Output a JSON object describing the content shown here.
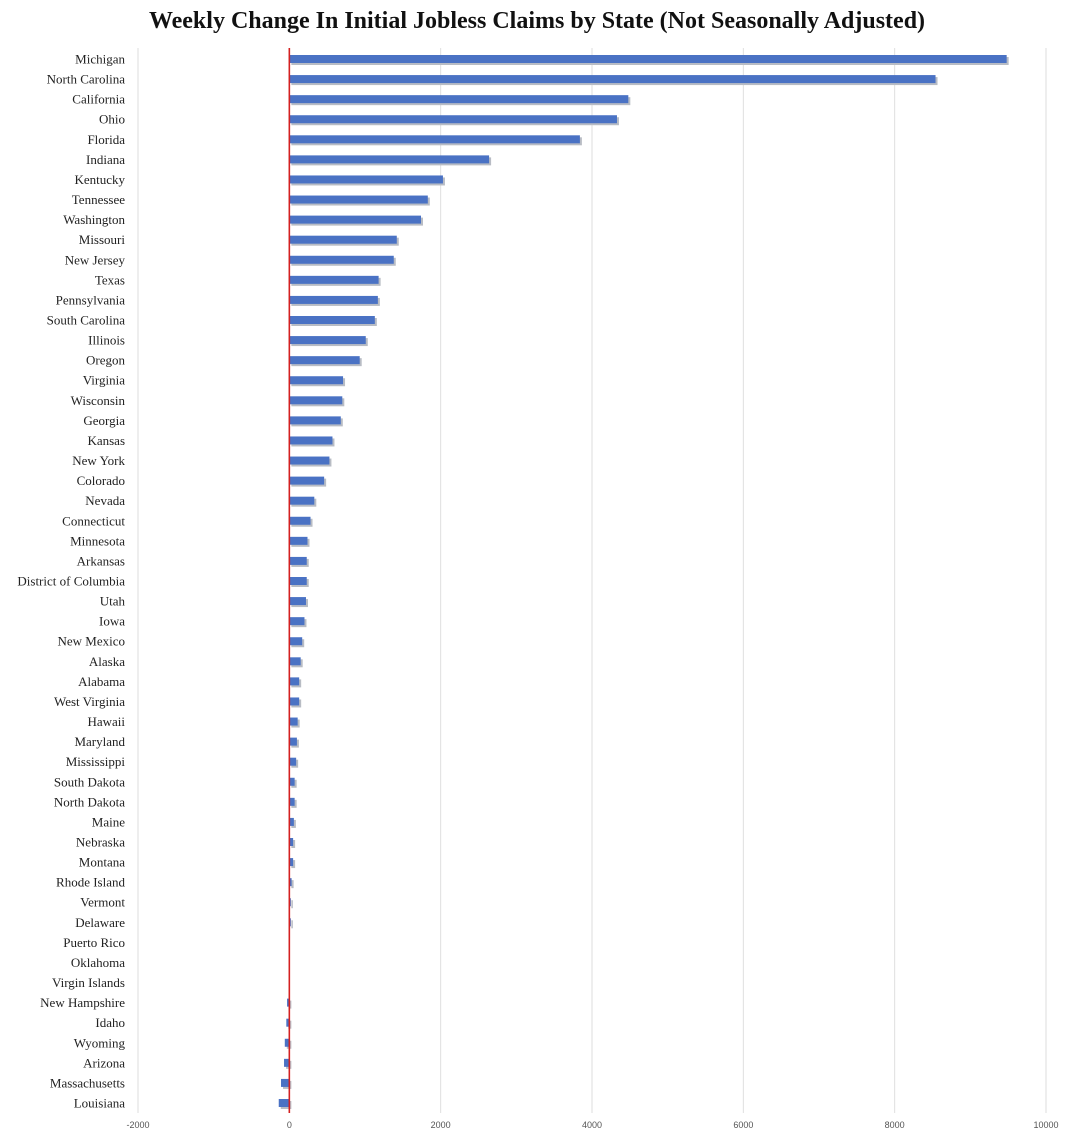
{
  "chart_data": {
    "type": "bar",
    "orientation": "horizontal",
    "title": "Weekly Change In Initial Jobless Claims by State (Not Seasonally Adjusted)",
    "xlabel": "",
    "ylabel": "",
    "xlim": [
      -2000,
      10000
    ],
    "x_ticks": [
      -2000,
      0,
      2000,
      4000,
      6000,
      8000,
      10000
    ],
    "grid": "vertical",
    "legend": "none",
    "categories": [
      "Michigan",
      "North Carolina",
      "California",
      "Ohio",
      "Florida",
      "Indiana",
      "Kentucky",
      "Tennessee",
      "Washington",
      "Missouri",
      "New Jersey",
      "Texas",
      "Pennsylvania",
      "South Carolina",
      "Illinois",
      "Oregon",
      "Virginia",
      "Wisconsin",
      "Georgia",
      "Kansas",
      "New York",
      "Colorado",
      "Nevada",
      "Connecticut",
      "Minnesota",
      "Arkansas",
      "District of Columbia",
      "Utah",
      "Iowa",
      "New Mexico",
      "Alaska",
      "Alabama",
      "West Virginia",
      "Hawaii",
      "Maryland",
      "Mississippi",
      "South Dakota",
      "North Dakota",
      "Maine",
      "Nebraska",
      "Montana",
      "Rhode Island",
      "Vermont",
      "Delaware",
      "Puerto Rico",
      "Oklahoma",
      "Virgin Islands",
      "New Hampshire",
      "Idaho",
      "Wyoming",
      "Arizona",
      "Massachusetts",
      "Louisiana"
    ],
    "values": [
      9480,
      8540,
      4480,
      4330,
      3840,
      2640,
      2030,
      1830,
      1740,
      1420,
      1380,
      1180,
      1170,
      1130,
      1010,
      930,
      710,
      700,
      680,
      570,
      530,
      460,
      330,
      280,
      240,
      230,
      230,
      220,
      200,
      170,
      150,
      130,
      130,
      110,
      100,
      90,
      70,
      70,
      60,
      50,
      50,
      30,
      20,
      20,
      0,
      0,
      0,
      -30,
      -40,
      -60,
      -70,
      -110,
      -140
    ],
    "colors": {
      "bar": "#4a72c4",
      "zero_line": "#d42020",
      "grid": "#dedede"
    }
  }
}
